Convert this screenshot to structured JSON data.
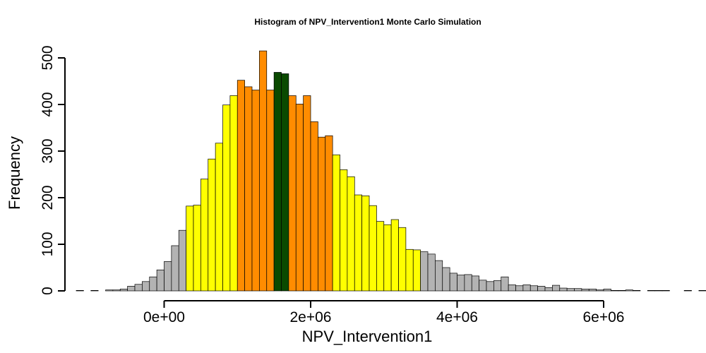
{
  "chart_data": {
    "type": "bar",
    "title": "Histogram of  NPV_Intervention1  Monte Carlo Simulation",
    "xlabel": "NPV_Intervention1",
    "ylabel": "Frequency",
    "xlim": [
      -1200000,
      6800000
    ],
    "ylim": [
      0,
      520
    ],
    "bin_start": -1200000,
    "bin_width": 100000,
    "x_ticks": [
      {
        "value": 0,
        "label": "0e+00"
      },
      {
        "value": 2000000,
        "label": "2e+06"
      },
      {
        "value": 4000000,
        "label": "4e+06"
      },
      {
        "value": 6000000,
        "label": "6e+06"
      }
    ],
    "y_ticks": [
      {
        "value": 0,
        "label": "0"
      },
      {
        "value": 100,
        "label": "100"
      },
      {
        "value": 200,
        "label": "200"
      },
      {
        "value": 300,
        "label": "300"
      },
      {
        "value": 400,
        "label": "400"
      },
      {
        "value": 500,
        "label": "500"
      }
    ],
    "colors": {
      "tail": "#b3b3b3",
      "outer": "#ffff00",
      "inner": "#ff8c00",
      "center": "#0a4a00"
    },
    "series": [
      {
        "name": "NPV_Intervention1",
        "values": [
          1,
          0,
          1,
          0,
          2,
          2,
          4,
          10,
          14,
          20,
          30,
          45,
          63,
          97,
          130,
          182,
          184,
          240,
          283,
          317,
          399,
          419,
          452,
          438,
          431,
          515,
          431,
          469,
          466,
          419,
          401,
          419,
          363,
          330,
          333,
          292,
          260,
          245,
          206,
          204,
          183,
          149,
          142,
          153,
          136,
          89,
          88,
          84,
          79,
          65,
          50,
          38,
          34,
          35,
          32,
          23,
          20,
          22,
          30,
          13,
          11,
          13,
          11,
          10,
          7,
          12,
          6,
          5,
          5,
          4,
          4,
          2,
          4,
          1,
          1,
          2,
          1,
          0,
          1,
          1,
          1,
          0,
          0,
          1,
          0,
          1
        ],
        "categories": [
          "tail",
          "tail",
          "tail",
          "tail",
          "tail",
          "tail",
          "tail",
          "tail",
          "tail",
          "tail",
          "tail",
          "tail",
          "tail",
          "tail",
          "tail",
          "outer",
          "outer",
          "outer",
          "outer",
          "outer",
          "outer",
          "outer",
          "inner",
          "inner",
          "inner",
          "inner",
          "inner",
          "center",
          "center",
          "inner",
          "inner",
          "inner",
          "inner",
          "inner",
          "inner",
          "outer",
          "outer",
          "outer",
          "outer",
          "outer",
          "outer",
          "outer",
          "outer",
          "outer",
          "outer",
          "outer",
          "outer",
          "tail",
          "tail",
          "tail",
          "tail",
          "tail",
          "tail",
          "tail",
          "tail",
          "tail",
          "tail",
          "tail",
          "tail",
          "tail",
          "tail",
          "tail",
          "tail",
          "tail",
          "tail",
          "tail",
          "tail",
          "tail",
          "tail",
          "tail",
          "tail",
          "tail",
          "tail",
          "tail",
          "tail",
          "tail",
          "tail",
          "tail",
          "tail",
          "tail",
          "tail",
          "tail",
          "tail",
          "tail",
          "tail",
          "tail"
        ]
      }
    ]
  }
}
